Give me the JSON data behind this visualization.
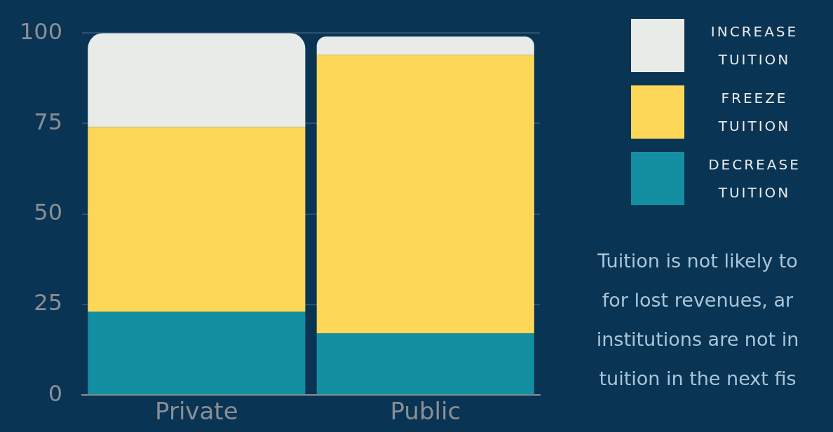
{
  "chart_data": {
    "type": "bar",
    "stacked": true,
    "categories": [
      "Private",
      "Public"
    ],
    "series": [
      {
        "name": "DECREASE TUITION",
        "color": "#138fa1",
        "values": [
          23,
          17
        ]
      },
      {
        "name": "FREEZE TUITION",
        "color": "#fdd858",
        "values": [
          51,
          77
        ]
      },
      {
        "name": "INCREASE TUITION",
        "color": "#e9ebe8",
        "values": [
          26,
          5
        ]
      }
    ],
    "ylim": [
      0,
      100
    ],
    "yticks": [
      0,
      25,
      50,
      75,
      100
    ],
    "grid": "y",
    "legend": "top right",
    "annotations": [
      "Tuition is not likely to",
      "for lost revenues, ar",
      "institutions are not in",
      "tuition in the next fis"
    ]
  }
}
